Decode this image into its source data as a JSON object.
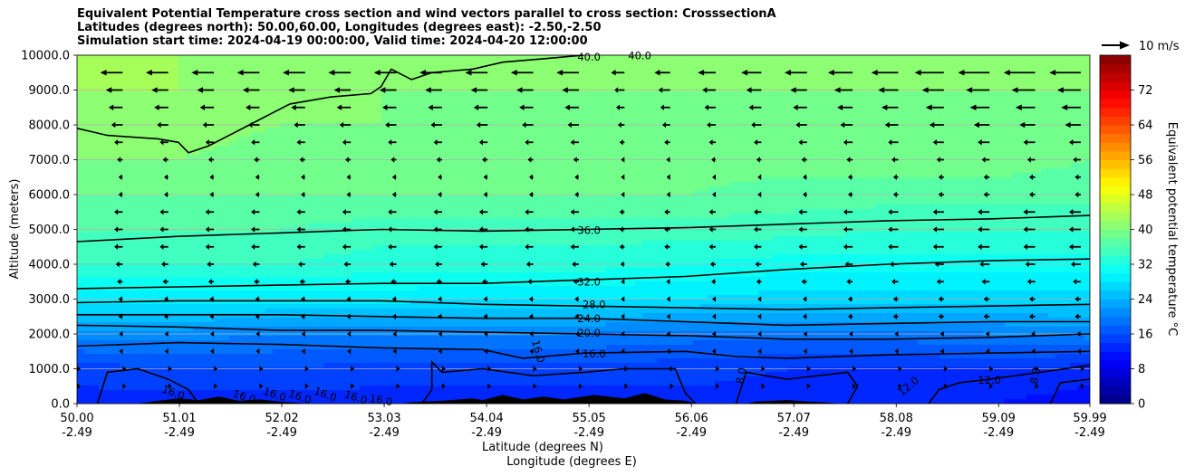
{
  "chart_data": {
    "type": "contour",
    "title_lines": [
      "Equivalent Potential Temperature cross section and wind vectors parallel to cross section: CrosssectionA",
      "Latitudes (degrees north): 50.00,60.00, Longitudes (degrees east): -2.50,-2.50",
      "Simulation start time: 2024-04-19 00:00:00, Valid time: 2024-04-20 12:00:00"
    ],
    "xlabel_lines": [
      "Latitude (degrees N)",
      "Longitude (degrees E)"
    ],
    "ylabel": "Altitude (meters)",
    "xlim": [
      50.0,
      59.99
    ],
    "ylim": [
      0,
      10000
    ],
    "x_ticks": [
      {
        "lat": "50.00",
        "lon": "-2.49"
      },
      {
        "lat": "51.01",
        "lon": "-2.49"
      },
      {
        "lat": "52.02",
        "lon": "-2.49"
      },
      {
        "lat": "53.03",
        "lon": "-2.49"
      },
      {
        "lat": "54.04",
        "lon": "-2.49"
      },
      {
        "lat": "55.05",
        "lon": "-2.49"
      },
      {
        "lat": "56.06",
        "lon": "-2.49"
      },
      {
        "lat": "57.07",
        "lon": "-2.49"
      },
      {
        "lat": "58.08",
        "lon": "-2.49"
      },
      {
        "lat": "59.09",
        "lon": "-2.49"
      },
      {
        "lat": "59.99",
        "lon": "-2.49"
      }
    ],
    "y_ticks": [
      "0.0",
      "1000.0",
      "2000.0",
      "3000.0",
      "4000.0",
      "5000.0",
      "6000.0",
      "7000.0",
      "8000.0",
      "9000.0",
      "10000.0"
    ],
    "grid": "horizontal",
    "colorbar": {
      "label": "Equivalent potential temperature °C",
      "ticks": [
        "0",
        "8",
        "16",
        "24",
        "32",
        "40",
        "48",
        "56",
        "64",
        "72"
      ],
      "range": [
        0,
        80
      ],
      "colormap": "jet"
    },
    "quiver_key": "10 m/s",
    "contour_labels": [
      "40.0",
      "40.0",
      "36.0",
      "32.0",
      "28.0",
      "24.0",
      "20.0",
      "16.0",
      "16.0",
      "16.0",
      "16.0",
      "16.0",
      "16.0",
      "16.0",
      "16.0",
      "16.0",
      "12.0",
      "12.0",
      "8.0",
      "8.0"
    ],
    "contours": [
      {
        "level": 40,
        "points": [
          [
            50.0,
            7900
          ],
          [
            50.3,
            7700
          ],
          [
            50.8,
            7600
          ],
          [
            51.0,
            7500
          ],
          [
            51.1,
            7200
          ],
          [
            51.3,
            7400
          ],
          [
            51.5,
            7700
          ],
          [
            51.7,
            8000
          ],
          [
            51.9,
            8300
          ],
          [
            52.1,
            8600
          ],
          [
            52.5,
            8800
          ],
          [
            52.9,
            8900
          ],
          [
            53.0,
            9100
          ],
          [
            53.1,
            9600
          ],
          [
            53.3,
            9300
          ],
          [
            53.5,
            9500
          ],
          [
            53.9,
            9600
          ],
          [
            54.2,
            9800
          ],
          [
            54.6,
            9900
          ],
          [
            55.0,
            10000
          ]
        ]
      },
      {
        "level": 36,
        "points": [
          [
            50.0,
            4650
          ],
          [
            51.0,
            4800
          ],
          [
            52.0,
            4900
          ],
          [
            53.0,
            5000
          ],
          [
            54.0,
            4950
          ],
          [
            55.0,
            5000
          ],
          [
            56.0,
            5050
          ],
          [
            57.0,
            5150
          ],
          [
            58.0,
            5250
          ],
          [
            59.0,
            5300
          ],
          [
            59.99,
            5400
          ]
        ]
      },
      {
        "level": 32,
        "points": [
          [
            50.0,
            3300
          ],
          [
            51.0,
            3350
          ],
          [
            52.0,
            3400
          ],
          [
            53.0,
            3450
          ],
          [
            54.0,
            3450
          ],
          [
            55.0,
            3550
          ],
          [
            56.0,
            3650
          ],
          [
            57.0,
            3850
          ],
          [
            58.0,
            4000
          ],
          [
            59.0,
            4100
          ],
          [
            59.99,
            4150
          ]
        ]
      },
      {
        "level": 28,
        "points": [
          [
            50.0,
            2900
          ],
          [
            51.0,
            2950
          ],
          [
            52.0,
            2950
          ],
          [
            53.0,
            2950
          ],
          [
            54.0,
            2850
          ],
          [
            55.0,
            2800
          ],
          [
            56.0,
            2750
          ],
          [
            57.0,
            2700
          ],
          [
            58.0,
            2750
          ],
          [
            59.0,
            2800
          ],
          [
            59.99,
            2850
          ]
        ]
      },
      {
        "level": 24,
        "points": [
          [
            50.0,
            2550
          ],
          [
            51.0,
            2550
          ],
          [
            52.0,
            2550
          ],
          [
            53.0,
            2500
          ],
          [
            54.0,
            2450
          ],
          [
            55.0,
            2450
          ],
          [
            56.0,
            2350
          ],
          [
            57.0,
            2250
          ],
          [
            58.0,
            2300
          ],
          [
            59.0,
            2350
          ],
          [
            59.99,
            2350
          ]
        ]
      },
      {
        "level": 20,
        "points": [
          [
            50.0,
            2250
          ],
          [
            51.0,
            2200
          ],
          [
            52.0,
            2100
          ],
          [
            53.0,
            2100
          ],
          [
            54.0,
            2050
          ],
          [
            55.0,
            2000
          ],
          [
            56.0,
            1950
          ],
          [
            57.0,
            1850
          ],
          [
            58.0,
            1850
          ],
          [
            59.0,
            1900
          ],
          [
            59.99,
            2000
          ]
        ]
      },
      {
        "level": 16,
        "points": [
          [
            50.0,
            1650
          ],
          [
            51.0,
            1750
          ],
          [
            52.0,
            1700
          ],
          [
            53.0,
            1600
          ],
          [
            54.0,
            1550
          ],
          [
            54.4,
            1300
          ],
          [
            55.0,
            1450
          ],
          [
            56.0,
            1500
          ],
          [
            56.5,
            1350
          ],
          [
            57.0,
            1300
          ],
          [
            58.0,
            1400
          ],
          [
            59.0,
            1450
          ],
          [
            59.99,
            1500
          ]
        ]
      },
      {
        "level": 16,
        "points": [
          [
            50.2,
            0
          ],
          [
            50.3,
            900
          ],
          [
            50.6,
            1000
          ],
          [
            50.9,
            700
          ],
          [
            51.1,
            400
          ],
          [
            51.2,
            0
          ]
        ]
      },
      {
        "level": 16,
        "points": [
          [
            53.4,
            0
          ],
          [
            53.5,
            400
          ],
          [
            53.5,
            1200
          ],
          [
            53.6,
            900
          ],
          [
            54.0,
            1000
          ],
          [
            54.5,
            800
          ],
          [
            55.0,
            900
          ],
          [
            55.4,
            1000
          ],
          [
            55.9,
            1000
          ],
          [
            56.0,
            300
          ],
          [
            56.1,
            0
          ]
        ]
      },
      {
        "level": 16,
        "points": [
          [
            56.5,
            0
          ],
          [
            56.6,
            900
          ],
          [
            57.0,
            700
          ],
          [
            57.6,
            900
          ],
          [
            57.7,
            500
          ],
          [
            57.6,
            0
          ]
        ]
      },
      {
        "level": 12,
        "points": [
          [
            59.99,
            1100
          ],
          [
            59.5,
            900
          ],
          [
            59.0,
            700
          ],
          [
            58.7,
            600
          ],
          [
            58.5,
            400
          ],
          [
            58.4,
            0
          ]
        ]
      },
      {
        "level": 8,
        "points": [
          [
            59.6,
            0
          ],
          [
            59.7,
            600
          ],
          [
            59.99,
            700
          ]
        ]
      }
    ],
    "terrain": [
      [
        50.0,
        0
      ],
      [
        50.6,
        0
      ],
      [
        50.8,
        80
      ],
      [
        51.0,
        150
      ],
      [
        51.2,
        100
      ],
      [
        51.4,
        200
      ],
      [
        51.6,
        80
      ],
      [
        51.8,
        120
      ],
      [
        52.0,
        60
      ],
      [
        52.3,
        0
      ],
      [
        53.0,
        0
      ],
      [
        53.2,
        0
      ],
      [
        53.3,
        40
      ],
      [
        53.6,
        80
      ],
      [
        53.9,
        150
      ],
      [
        54.0,
        100
      ],
      [
        54.2,
        250
      ],
      [
        54.4,
        120
      ],
      [
        54.6,
        200
      ],
      [
        54.8,
        120
      ],
      [
        55.1,
        250
      ],
      [
        55.4,
        150
      ],
      [
        55.6,
        300
      ],
      [
        55.8,
        120
      ],
      [
        56.0,
        80
      ],
      [
        56.1,
        0
      ],
      [
        56.6,
        0
      ],
      [
        56.7,
        60
      ],
      [
        57.0,
        100
      ],
      [
        57.2,
        60
      ],
      [
        57.4,
        30
      ],
      [
        57.5,
        0
      ],
      [
        59.99,
        0
      ]
    ],
    "theta_e_background": {
      "x": [
        50.0,
        51.0,
        52.0,
        53.0,
        54.0,
        55.0,
        56.0,
        57.0,
        58.0,
        59.0,
        59.99
      ],
      "y": [
        0,
        1000,
        2000,
        3000,
        4000,
        5000,
        6000,
        7000,
        8000,
        9000,
        10000
      ],
      "values": [
        [
          13,
          13,
          13,
          13,
          13,
          13,
          13,
          13,
          13,
          12,
          11
        ],
        [
          15,
          16,
          16,
          15,
          15,
          15,
          15,
          14,
          14,
          14,
          13
        ],
        [
          21,
          21,
          20,
          20,
          20,
          20,
          19,
          19,
          19,
          20,
          21
        ],
        [
          29,
          29,
          29,
          29,
          28,
          28,
          28,
          27,
          27,
          27,
          27
        ],
        [
          34,
          34,
          34,
          33,
          33,
          33,
          32,
          31,
          31,
          31,
          31
        ],
        [
          36,
          36,
          36,
          35,
          35,
          35,
          35,
          35,
          34,
          34,
          34
        ],
        [
          38,
          38,
          38,
          38,
          38,
          38,
          38,
          37,
          37,
          37,
          37
        ],
        [
          40,
          40,
          39,
          39,
          39,
          39,
          39,
          39,
          39,
          39,
          38
        ],
        [
          40,
          41,
          40,
          40,
          39,
          39,
          39,
          39,
          39,
          39,
          39
        ],
        [
          42,
          42,
          41,
          40,
          40,
          40,
          40,
          40,
          40,
          40,
          40
        ],
        [
          42,
          42,
          42,
          42,
          41,
          40,
          40,
          40,
          40,
          40,
          40
        ]
      ]
    },
    "wind_vectors": {
      "x": [
        50.0,
        50.45,
        50.9,
        51.35,
        51.8,
        52.25,
        52.7,
        53.15,
        53.6,
        54.05,
        54.5,
        54.95,
        55.4,
        55.85,
        56.3,
        56.75,
        57.2,
        57.65,
        58.1,
        58.55,
        59.0,
        59.45,
        59.9
      ],
      "y": [
        9500,
        9000,
        8500,
        8000,
        7500,
        7000,
        6500,
        6000,
        5500,
        5000,
        4500,
        4000,
        3500,
        3000,
        2500,
        2000,
        1500,
        1000,
        500
      ],
      "u_ms": [
        -8,
        -6,
        -5,
        -4,
        -3,
        -2,
        -1.5,
        -1.5,
        -3,
        -3,
        -3,
        -2.5,
        -2,
        -1.5,
        -1.5,
        -1,
        -0.5,
        0,
        0
      ],
      "u_scale_east": [
        0.6,
        0.7,
        0.8,
        0.9,
        1.0,
        1.1,
        1.2,
        1.3,
        1.4
      ],
      "u_scale_east_start": 55.4
    }
  }
}
